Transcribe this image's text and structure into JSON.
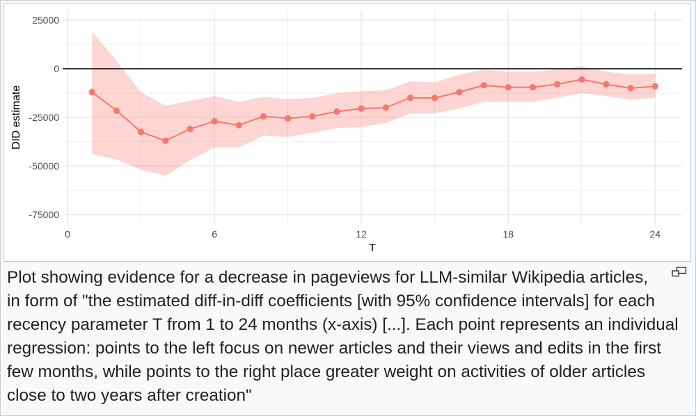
{
  "figure": {
    "caption": {
      "lines": [
        "Plot showing evidence for a decrease in pageviews for LLM-similar Wikipedia articles,",
        "in form of \"the estimated diff-in-diff coefficients [with 95% confidence intervals] for each",
        "recency parameter T from 1 to 24 months (x-axis) [...]. Each point represents an individual",
        "regression: points to the left focus on newer articles and their views and edits in the first",
        "few months, while points to the right place greater weight on activities of older articles",
        "close to two years after creation\""
      ]
    }
  },
  "icons": {
    "enlarge": "enlarge-icon"
  },
  "colors": {
    "series": "#F8766D",
    "reference_line": "#1a1a1a",
    "grid": "#e6e6e6",
    "tick_text": "#4d4d4d",
    "caption_text": "#202122",
    "caption_background": "#f8f9fa"
  },
  "chart_data": {
    "type": "line",
    "xlabel": "T",
    "ylabel": "DID estimate",
    "x": [
      1,
      2,
      3,
      4,
      5,
      6,
      7,
      8,
      9,
      10,
      11,
      12,
      13,
      14,
      15,
      16,
      17,
      18,
      19,
      20,
      21,
      22,
      23,
      24
    ],
    "series": [
      {
        "values": [
          -12000,
          -21500,
          -32500,
          -37000,
          -31000,
          -27000,
          -29000,
          -24500,
          -25500,
          -24500,
          -22000,
          -20500,
          -20000,
          -15000,
          -15000,
          -12000,
          -8500,
          -9500,
          -9500,
          -8000,
          -5500,
          -8000,
          -10000,
          -9000
        ],
        "ci_upper": [
          19000,
          4000,
          -12000,
          -19000,
          -16500,
          -14000,
          -17000,
          -14500,
          -15500,
          -15000,
          -12500,
          -11500,
          -11000,
          -6500,
          -7000,
          -3000,
          -500,
          -1500,
          -1500,
          -500,
          1500,
          -1500,
          -3000,
          -2500
        ],
        "ci_lower": [
          -44000,
          -46500,
          -52000,
          -55000,
          -47000,
          -40500,
          -40500,
          -34500,
          -35000,
          -33000,
          -30500,
          -30000,
          -28000,
          -23000,
          -23000,
          -20500,
          -17000,
          -17000,
          -17000,
          -15000,
          -12500,
          -14000,
          -16000,
          -15000
        ]
      }
    ],
    "xticks": [
      0,
      6,
      12,
      18,
      24
    ],
    "yticks": [
      25000,
      0,
      -25000,
      -50000,
      -75000
    ],
    "xlim": [
      -0.2,
      25.1
    ],
    "ylim": [
      -80000,
      30000
    ],
    "hline_y": 0,
    "grid": true,
    "minor_grid": true,
    "legend": "none"
  }
}
